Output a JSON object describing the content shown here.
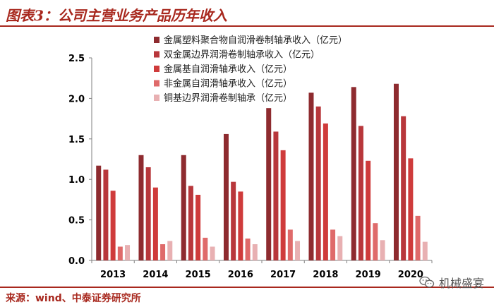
{
  "header": {
    "title": "图表3：公司主营业务产品历年收入"
  },
  "footer": {
    "source": "来源：wind、中泰证券研究所",
    "watermark": "机械盛宴"
  },
  "colors": {
    "accent": "#a8281e",
    "series": [
      "#8e2b2f",
      "#b8373b",
      "#cf3b3b",
      "#df6a6a",
      "#e8b0b2"
    ]
  },
  "chart_data": {
    "type": "bar",
    "categories": [
      "2013",
      "2014",
      "2015",
      "2016",
      "2017",
      "2018",
      "2019",
      "2020"
    ],
    "series": [
      {
        "name": "金属塑料聚合物自润滑卷制轴承收入（亿元）",
        "values": [
          1.17,
          1.3,
          1.3,
          1.56,
          1.88,
          2.07,
          2.14,
          2.18
        ]
      },
      {
        "name": "双金属边界润滑卷制轴承收入（亿元）",
        "values": [
          1.12,
          1.15,
          0.92,
          0.97,
          1.59,
          1.9,
          1.66,
          1.78
        ]
      },
      {
        "name": "金属基自润滑轴承收入（亿元）",
        "values": [
          0.86,
          0.9,
          0.81,
          0.85,
          1.36,
          1.69,
          1.23,
          1.26
        ]
      },
      {
        "name": "非金属自润滑轴承收入（亿元）",
        "values": [
          0.17,
          0.2,
          0.28,
          0.27,
          0.38,
          0.38,
          0.46,
          0.55
        ]
      },
      {
        "name": "铜基边界润滑卷制轴承（亿元）",
        "values": [
          0.19,
          0.24,
          0.17,
          0.2,
          0.24,
          0.3,
          0.25,
          0.23
        ]
      }
    ],
    "ylim": [
      0,
      2.5
    ],
    "yticks": [
      "0.0",
      "0.5",
      "1.0",
      "1.5",
      "2.0",
      "2.5"
    ],
    "grid": false,
    "legend_position": "top-center"
  }
}
